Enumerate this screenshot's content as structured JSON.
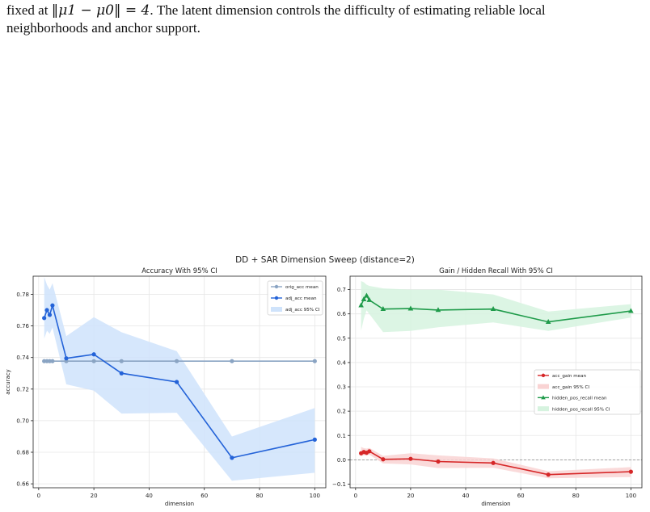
{
  "paper": {
    "line1_prefix": "fixed at ",
    "line1_math": "‖μ1 − μ0‖ = 4",
    "line1_suffix": ". The latent dimension controls the difficulty of estimating reliable local",
    "line2": "neighborhoods and anchor support."
  },
  "figure": {
    "suptitle": "DD + SAR Dimension Sweep (distance=2)"
  },
  "chart_data": [
    {
      "type": "line",
      "title": "Accuracy With 95% CI",
      "xlabel": "dimension",
      "ylabel": "accuracy",
      "xlim": [
        -2,
        104
      ],
      "ylim": [
        0.6575,
        0.7915
      ],
      "xticks": [
        0,
        20,
        40,
        60,
        80,
        100
      ],
      "yticks": [
        0.66,
        0.68,
        0.7,
        0.72,
        0.74,
        0.76,
        0.78
      ],
      "ytick_labels": [
        "0.66",
        "0.68",
        "0.70",
        "0.72",
        "0.74",
        "0.76",
        "0.78"
      ],
      "grid": true,
      "legend_position": "top-right",
      "x": [
        2,
        3,
        4,
        5,
        10,
        20,
        30,
        50,
        70,
        100
      ],
      "series": [
        {
          "name": "orig_acc mean",
          "marker": "circle",
          "color": "#8aa4c3",
          "values": [
            0.7377,
            0.7377,
            0.7377,
            0.7377,
            0.7377,
            0.7377,
            0.7377,
            0.7377,
            0.7377,
            0.7377
          ]
        },
        {
          "name": "adj_acc mean",
          "marker": "circle",
          "color": "#2463d8",
          "values": [
            0.765,
            0.77,
            0.767,
            0.773,
            0.7395,
            0.742,
            0.73,
            0.7245,
            0.6765,
            0.688
          ],
          "ci_name": "adj_acc 95% CI",
          "ci_color": "#cfe3fb",
          "ci_low": [
            0.752,
            0.757,
            0.755,
            0.759,
            0.723,
            0.719,
            0.7045,
            0.705,
            0.662,
            0.667
          ],
          "ci_high": [
            0.791,
            0.786,
            0.783,
            0.787,
            0.7535,
            0.7655,
            0.756,
            0.744,
            0.69,
            0.708
          ]
        }
      ]
    },
    {
      "type": "line",
      "title": "Gain / Hidden Recall With 95% CI",
      "xlabel": "dimension",
      "ylabel": "",
      "xlim": [
        -2,
        104
      ],
      "ylim": [
        -0.115,
        0.755
      ],
      "xticks": [
        0,
        20,
        40,
        60,
        80,
        100
      ],
      "yticks": [
        -0.1,
        0.0,
        0.1,
        0.2,
        0.3,
        0.4,
        0.5,
        0.6,
        0.7
      ],
      "ytick_labels": [
        "−0.1",
        "0.0",
        "0.1",
        "0.2",
        "0.3",
        "0.4",
        "0.5",
        "0.6",
        "0.7"
      ],
      "grid": true,
      "reference_line": 0,
      "legend_position": "center-right",
      "x": [
        2,
        3,
        4,
        5,
        10,
        20,
        30,
        50,
        70,
        100
      ],
      "series": [
        {
          "name": "acc_gain mean",
          "marker": "circle",
          "color": "#d62728",
          "values": [
            0.027,
            0.032,
            0.029,
            0.035,
            0.002,
            0.004,
            -0.007,
            -0.013,
            -0.061,
            -0.049
          ],
          "ci_name": "acc_gain 95% CI",
          "ci_color": "#f9d3d3",
          "ci_low": [
            0.014,
            0.019,
            0.017,
            0.021,
            -0.015,
            -0.019,
            -0.034,
            -0.033,
            -0.076,
            -0.071
          ],
          "ci_high": [
            0.053,
            0.048,
            0.046,
            0.049,
            0.016,
            0.027,
            0.018,
            0.006,
            -0.047,
            -0.03
          ]
        },
        {
          "name": "hidden_pos_recall mean",
          "marker": "triangle",
          "color": "#1f9b4a",
          "values": [
            0.635,
            0.66,
            0.675,
            0.657,
            0.62,
            0.622,
            0.616,
            0.62,
            0.567,
            0.612
          ],
          "ci_name": "hidden_pos_recall 95% CI",
          "ci_color": "#d6f3df",
          "ci_low": [
            0.53,
            0.58,
            0.615,
            0.6,
            0.525,
            0.53,
            0.545,
            0.565,
            0.53,
            0.585
          ],
          "ci_high": [
            0.735,
            0.73,
            0.72,
            0.715,
            0.705,
            0.7,
            0.7,
            0.68,
            0.61,
            0.64
          ]
        }
      ]
    }
  ]
}
